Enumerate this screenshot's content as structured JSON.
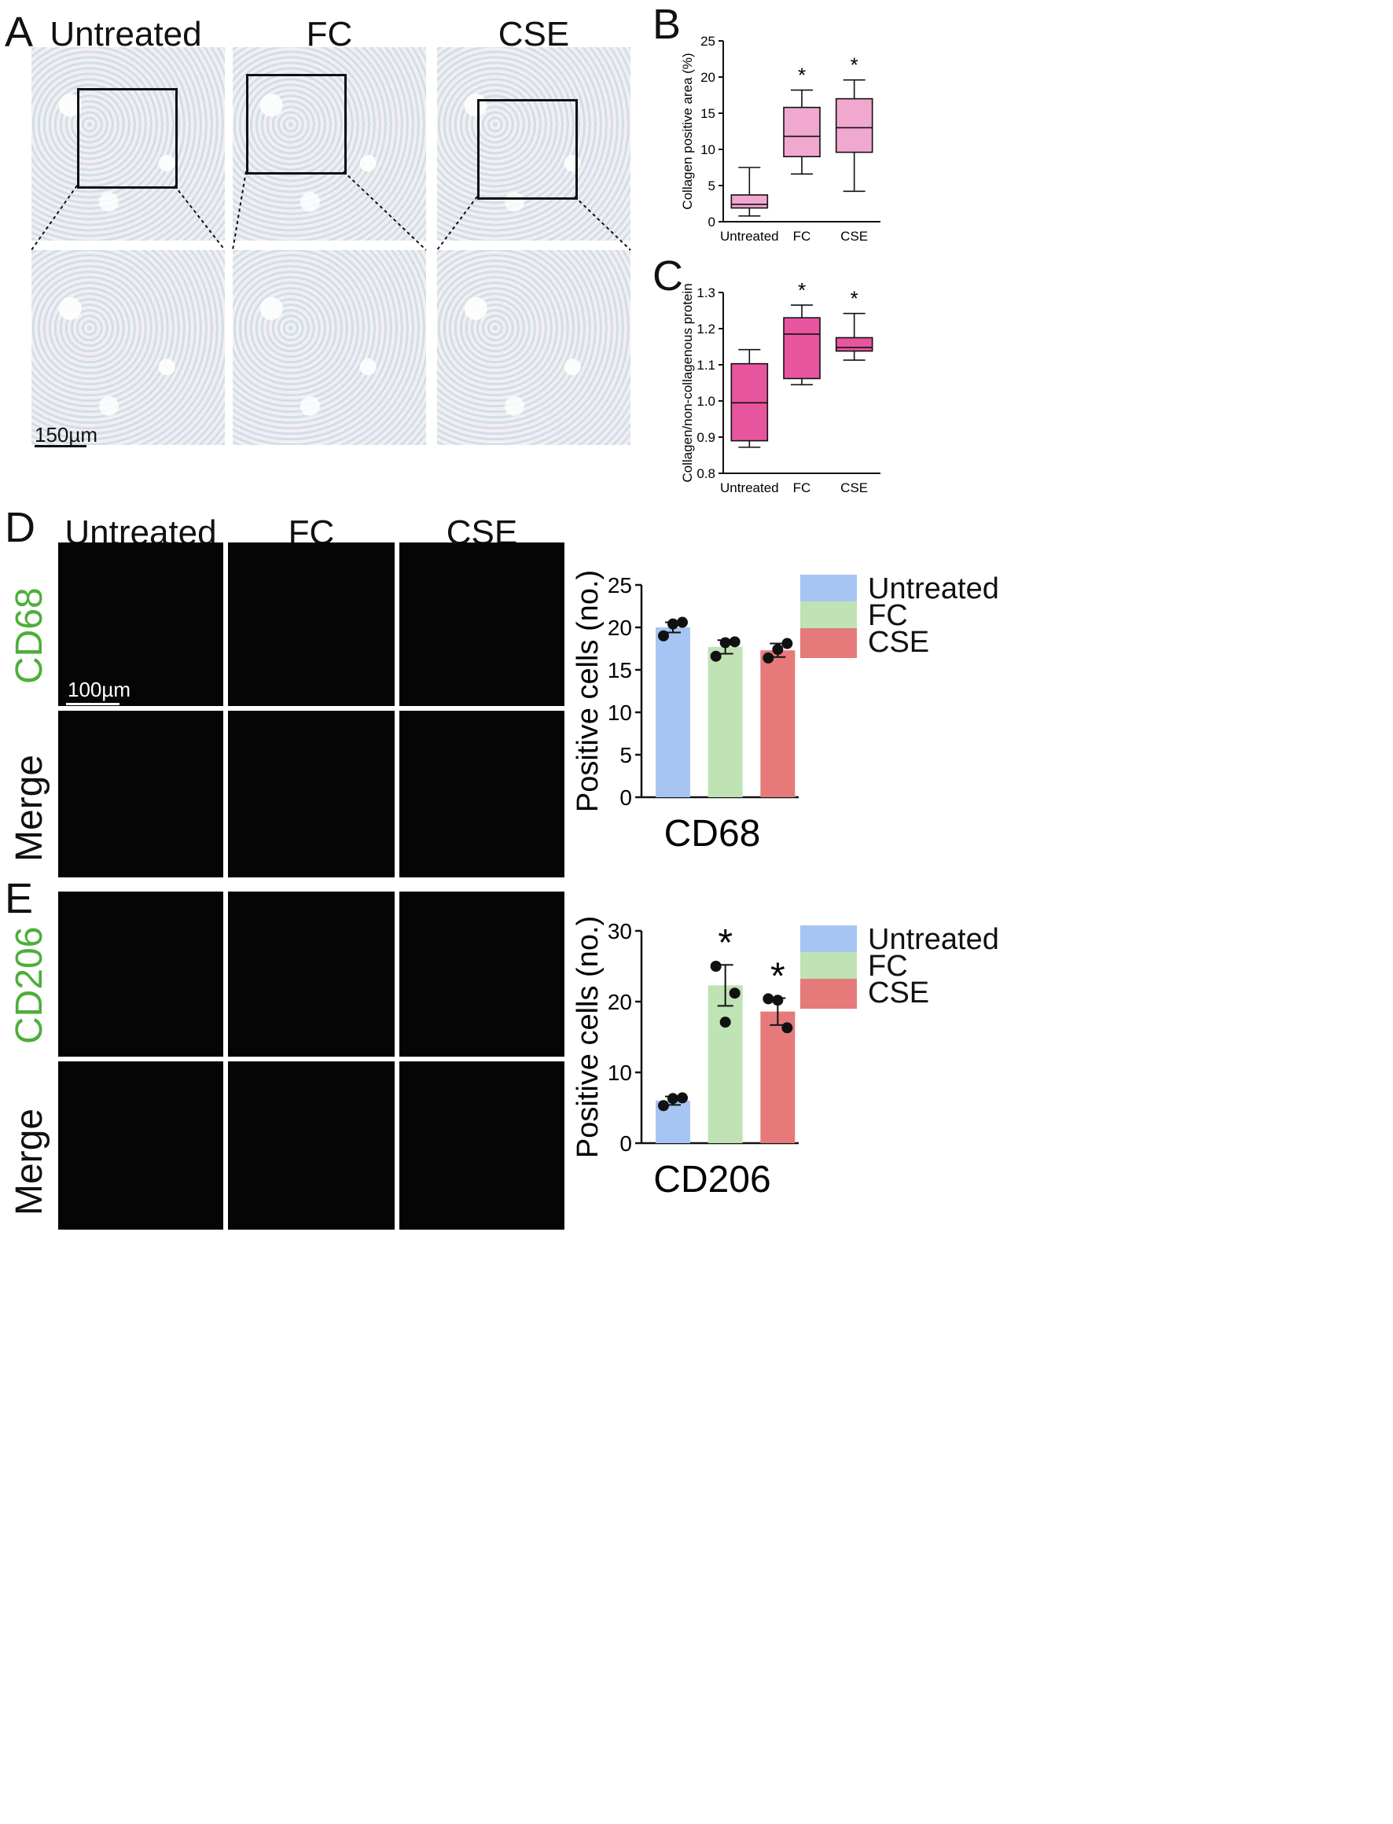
{
  "panels": {
    "A": {
      "letter": "A",
      "columns": [
        "Untreated",
        "FC",
        "CSE"
      ],
      "scale_label": "150µm"
    },
    "B": {
      "letter": "B"
    },
    "C": {
      "letter": "C"
    },
    "D": {
      "letter": "D",
      "columns": [
        "Untreated",
        "FC",
        "CSE"
      ],
      "rows": [
        "CD68",
        "Merge"
      ],
      "scale_label": "100µm"
    },
    "E": {
      "letter": "E",
      "columns": [
        "Untreated",
        "FC",
        "CSE"
      ],
      "rows": [
        "CD206",
        "Merge"
      ]
    }
  },
  "colors": {
    "box_light_pink": "#f0a8cf",
    "box_magenta": "#e8559f",
    "bar_untreated": "#a7c5f3",
    "bar_fc": "#bfe3b4",
    "bar_cse": "#e67a7a",
    "row_label_green": "#4caf3a"
  },
  "legend": [
    {
      "label": "Untreated",
      "color": "#a7c5f3"
    },
    {
      "label": "FC",
      "color": "#bfe3b4"
    },
    {
      "label": "CSE",
      "color": "#e67a7a"
    }
  ],
  "chart_data": [
    {
      "id": "B",
      "type": "box",
      "categories": [
        "Untreated",
        "FC",
        "CSE"
      ],
      "ylabel": "Collagen positive area (%)",
      "ylim": [
        0,
        25
      ],
      "yticks": [
        0,
        5,
        10,
        15,
        20,
        25
      ],
      "boxes": [
        {
          "min": 0.8,
          "q1": 1.9,
          "median": 2.4,
          "q3": 3.7,
          "max": 7.5,
          "sig": ""
        },
        {
          "min": 6.6,
          "q1": 9.0,
          "median": 11.8,
          "q3": 15.8,
          "max": 18.2,
          "sig": "*"
        },
        {
          "min": 4.2,
          "q1": 9.6,
          "median": 13.0,
          "q3": 17.0,
          "max": 19.6,
          "sig": "*"
        }
      ]
    },
    {
      "id": "C",
      "type": "box",
      "categories": [
        "Untreated",
        "FC",
        "CSE"
      ],
      "ylabel": "Collagen/non-collagenous protein",
      "ylim": [
        0.8,
        1.3
      ],
      "yticks": [
        "0.8",
        "0.9",
        "1.0",
        "1.1",
        "1.2",
        "1.3"
      ],
      "boxes": [
        {
          "min": 0.872,
          "q1": 0.89,
          "median": 0.995,
          "q3": 1.103,
          "max": 1.142,
          "sig": ""
        },
        {
          "min": 1.045,
          "q1": 1.062,
          "median": 1.185,
          "q3": 1.23,
          "max": 1.265,
          "sig": "*"
        },
        {
          "min": 1.113,
          "q1": 1.138,
          "median": 1.148,
          "q3": 1.175,
          "max": 1.242,
          "sig": "*"
        }
      ]
    },
    {
      "id": "D",
      "type": "bar",
      "categories": [
        "Untreated",
        "FC",
        "CSE"
      ],
      "values": [
        20.0,
        17.7,
        17.3
      ],
      "errors": [
        0.6,
        0.8,
        0.8
      ],
      "points": [
        [
          19.0,
          20.6,
          20.4
        ],
        [
          16.6,
          18.3,
          18.2
        ],
        [
          16.4,
          18.1,
          17.4
        ]
      ],
      "sig": [
        "",
        "",
        ""
      ],
      "ylabel": "Positive cells (no.)",
      "xlabel": "CD68",
      "ylim": [
        0,
        25
      ],
      "yticks": [
        0,
        5,
        10,
        15,
        20,
        25
      ]
    },
    {
      "id": "E",
      "type": "bar",
      "categories": [
        "Untreated",
        "FC",
        "CSE"
      ],
      "values": [
        6.0,
        22.3,
        18.6
      ],
      "errors": [
        0.6,
        2.9,
        1.9
      ],
      "points": [
        [
          5.3,
          6.4,
          6.3
        ],
        [
          25.0,
          21.2,
          17.1
        ],
        [
          20.4,
          16.3,
          20.2
        ]
      ],
      "sig": [
        "",
        "*",
        "*"
      ],
      "ylabel": "Positive cells (no.)",
      "xlabel": "CD206",
      "ylim": [
        0,
        30
      ],
      "yticks": [
        0,
        10,
        20,
        30
      ]
    }
  ]
}
